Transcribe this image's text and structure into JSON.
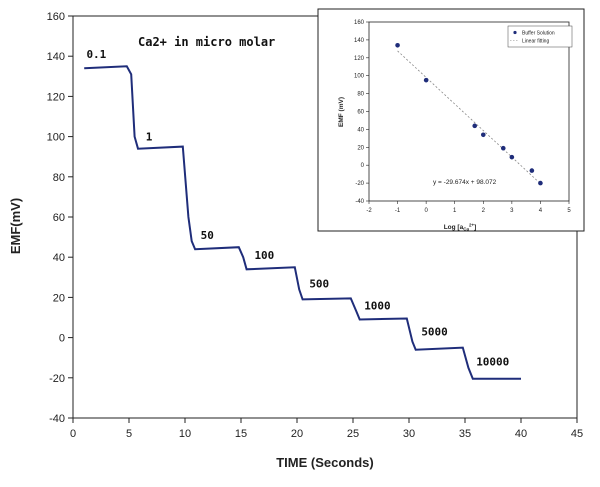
{
  "chart_data": [
    {
      "type": "line",
      "title": "Ca2+  in micro molar",
      "xlabel": "TIME (Seconds)",
      "ylabel": "EMF(mV)",
      "xlim": [
        0,
        45
      ],
      "ylim": [
        -40,
        160
      ],
      "xticks": [
        0,
        5,
        10,
        15,
        20,
        25,
        30,
        35,
        40,
        45
      ],
      "yticks": [
        -40,
        -20,
        0,
        20,
        40,
        60,
        80,
        100,
        120,
        140,
        160
      ],
      "grid": false,
      "line_color": "#1f2d7a",
      "series": [
        {
          "x": [
            1,
            4.8,
            5.2,
            5.5,
            5.8,
            9.8,
            10.3,
            10.6,
            10.9,
            14.8,
            15.2,
            15.5,
            19.8,
            20.2,
            20.5,
            24.8,
            25.3,
            25.6,
            29.8,
            30.3,
            30.6,
            34.8,
            35.3,
            35.7,
            40
          ],
          "y": [
            134,
            135,
            131,
            100,
            94,
            95,
            60,
            48,
            44,
            45,
            40,
            34,
            35,
            24,
            19,
            19.5,
            13,
            9,
            9.5,
            -2,
            -6,
            -5,
            -15,
            -20.5,
            -20.5
          ]
        }
      ],
      "annotations": [
        {
          "text": "0.1",
          "x": 1.2,
          "y": 139
        },
        {
          "text": "1",
          "x": 6.5,
          "y": 98
        },
        {
          "text": "50",
          "x": 11.4,
          "y": 49
        },
        {
          "text": "100",
          "x": 16.2,
          "y": 39
        },
        {
          "text": "500",
          "x": 21.1,
          "y": 25
        },
        {
          "text": "1000",
          "x": 26.0,
          "y": 14
        },
        {
          "text": "5000",
          "x": 31.1,
          "y": 1
        },
        {
          "text": "10000",
          "x": 36.0,
          "y": -14
        }
      ]
    },
    {
      "type": "scatter",
      "xlabel": "Log [a",
      "xlabel_sub": "Ca",
      "xlabel_sup": "2+",
      "xlabel_tail": "]",
      "ylabel": "EMF (mV)",
      "xlim": [
        -2,
        5
      ],
      "ylim": [
        -40,
        160
      ],
      "xticks": [
        -2,
        -1,
        0,
        1,
        2,
        3,
        4,
        5
      ],
      "yticks": [
        -40,
        -20,
        0,
        20,
        40,
        60,
        80,
        100,
        120,
        140,
        160
      ],
      "legend": "top-right",
      "equation": "y = -29.674x + 98.072",
      "series": [
        {
          "name": "Buffer Solution",
          "color": "#1f2d7a",
          "x": [
            -1,
            0,
            1.7,
            2,
            2.7,
            3,
            3.7,
            4
          ],
          "y": [
            134,
            95,
            44,
            34,
            19,
            9,
            -6,
            -20
          ]
        },
        {
          "name": "Linear fitting",
          "color": "#888888",
          "x": [
            -1,
            4
          ],
          "y": [
            127.7,
            -20.6
          ]
        }
      ]
    }
  ]
}
